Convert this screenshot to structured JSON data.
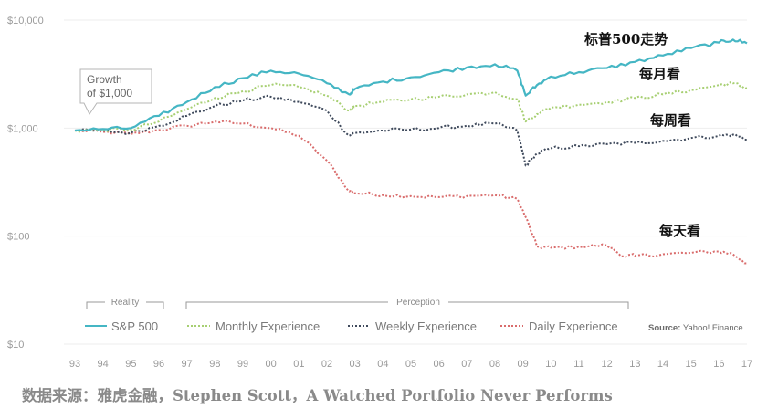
{
  "chart_data": {
    "type": "line",
    "y_scale": "log",
    "ylim": [
      10,
      10000
    ],
    "xlim": [
      93,
      117
    ],
    "y_ticks": [
      "$10,000",
      "$1,000",
      "$100",
      "$10"
    ],
    "x_ticks": [
      "93",
      "94",
      "95",
      "96",
      "97",
      "98",
      "99",
      "00",
      "01",
      "02",
      "03",
      "04",
      "05",
      "06",
      "07",
      "08",
      "09",
      "10",
      "11",
      "12",
      "13",
      "14",
      "15",
      "16",
      "17"
    ],
    "callout": "Growth\nof $1,000",
    "series": [
      {
        "name": "S&P 500",
        "annotation": "标普500走势",
        "color": "#45b6c4",
        "dash": "solid",
        "points": [
          [
            93,
            950
          ],
          [
            94,
            980
          ],
          [
            95,
            1000
          ],
          [
            96,
            1300
          ],
          [
            97,
            1750
          ],
          [
            98,
            2400
          ],
          [
            99,
            2900
          ],
          [
            100,
            3400
          ],
          [
            101,
            3200
          ],
          [
            102,
            2600
          ],
          [
            102.8,
            2050
          ],
          [
            103,
            2300
          ],
          [
            104,
            2700
          ],
          [
            105,
            2950
          ],
          [
            106,
            3300
          ],
          [
            107,
            3650
          ],
          [
            108,
            3900
          ],
          [
            108.8,
            3400
          ],
          [
            109.1,
            2000
          ],
          [
            109.5,
            2500
          ],
          [
            110,
            3000
          ],
          [
            111,
            3300
          ],
          [
            112,
            3600
          ],
          [
            113,
            4100
          ],
          [
            114,
            4700
          ],
          [
            115,
            5500
          ],
          [
            116,
            6200
          ],
          [
            116.5,
            6600
          ],
          [
            117,
            6100
          ]
        ]
      },
      {
        "name": "Monthly Experience",
        "annotation": "每月看",
        "color": "#a7cf72",
        "dash": "2,2",
        "points": [
          [
            93,
            950
          ],
          [
            94,
            970
          ],
          [
            95,
            960
          ],
          [
            96,
            1150
          ],
          [
            97,
            1500
          ],
          [
            98,
            1900
          ],
          [
            99,
            2200
          ],
          [
            100,
            2500
          ],
          [
            101,
            2400
          ],
          [
            102,
            2000
          ],
          [
            102.8,
            1450
          ],
          [
            103,
            1600
          ],
          [
            104,
            1750
          ],
          [
            105,
            1850
          ],
          [
            106,
            1950
          ],
          [
            107,
            2050
          ],
          [
            108,
            2150
          ],
          [
            108.8,
            1850
          ],
          [
            109.1,
            1150
          ],
          [
            109.5,
            1350
          ],
          [
            110,
            1550
          ],
          [
            111,
            1650
          ],
          [
            112,
            1750
          ],
          [
            113,
            1900
          ],
          [
            114,
            2050
          ],
          [
            115,
            2250
          ],
          [
            116,
            2500
          ],
          [
            116.5,
            2600
          ],
          [
            117,
            2350
          ]
        ]
      },
      {
        "name": "Weekly Experience",
        "annotation": "每周看",
        "color": "#3f4a5c",
        "dash": "2,2",
        "points": [
          [
            93,
            950
          ],
          [
            94,
            940
          ],
          [
            95,
            900
          ],
          [
            96,
            1050
          ],
          [
            97,
            1300
          ],
          [
            98,
            1600
          ],
          [
            99,
            1800
          ],
          [
            100,
            1950
          ],
          [
            101,
            1750
          ],
          [
            102,
            1450
          ],
          [
            102.8,
            850
          ],
          [
            103,
            900
          ],
          [
            104,
            950
          ],
          [
            105,
            970
          ],
          [
            106,
            1000
          ],
          [
            107,
            1050
          ],
          [
            108,
            1100
          ],
          [
            108.8,
            950
          ],
          [
            109.1,
            450
          ],
          [
            109.5,
            580
          ],
          [
            110,
            650
          ],
          [
            111,
            680
          ],
          [
            112,
            710
          ],
          [
            113,
            730
          ],
          [
            114,
            760
          ],
          [
            115,
            810
          ],
          [
            116,
            850
          ],
          [
            116.5,
            870
          ],
          [
            117,
            780
          ]
        ]
      },
      {
        "name": "Daily Experience",
        "annotation": "每天看",
        "color": "#d96c6c",
        "dash": "2,2",
        "points": [
          [
            93,
            950
          ],
          [
            94,
            920
          ],
          [
            95,
            880
          ],
          [
            96,
            960
          ],
          [
            97,
            1050
          ],
          [
            98,
            1150
          ],
          [
            99,
            1100
          ],
          [
            100,
            1000
          ],
          [
            101,
            850
          ],
          [
            102,
            500
          ],
          [
            102.8,
            260
          ],
          [
            103,
            250
          ],
          [
            104,
            240
          ],
          [
            105,
            235
          ],
          [
            106,
            230
          ],
          [
            107,
            235
          ],
          [
            108,
            240
          ],
          [
            108.8,
            220
          ],
          [
            109.1,
            150
          ],
          [
            109.5,
            80
          ],
          [
            110,
            78
          ],
          [
            111,
            80
          ],
          [
            112,
            82
          ],
          [
            112.6,
            65
          ],
          [
            113,
            66
          ],
          [
            114,
            68
          ],
          [
            115,
            70
          ],
          [
            116,
            72
          ],
          [
            116.5,
            68
          ],
          [
            117,
            56
          ]
        ]
      }
    ]
  },
  "legend": {
    "reality_label": "Reality",
    "perception_label": "Perception",
    "items": [
      {
        "label": "S&P 500",
        "color": "#45b6c4",
        "dash": "solid"
      },
      {
        "label": "Monthly Experience",
        "color": "#a7cf72",
        "dash": "dotted"
      },
      {
        "label": "Weekly Experience",
        "color": "#3f4a5c",
        "dash": "dotted"
      },
      {
        "label": "Daily Experience",
        "color": "#d96c6c",
        "dash": "dotted"
      }
    ],
    "source_prefix": "Source:",
    "source_text": "Yahoo! Finance"
  },
  "caption": "数据来源：雅虎金融，Stephen Scott，A Watched Portfolio Never Performs"
}
